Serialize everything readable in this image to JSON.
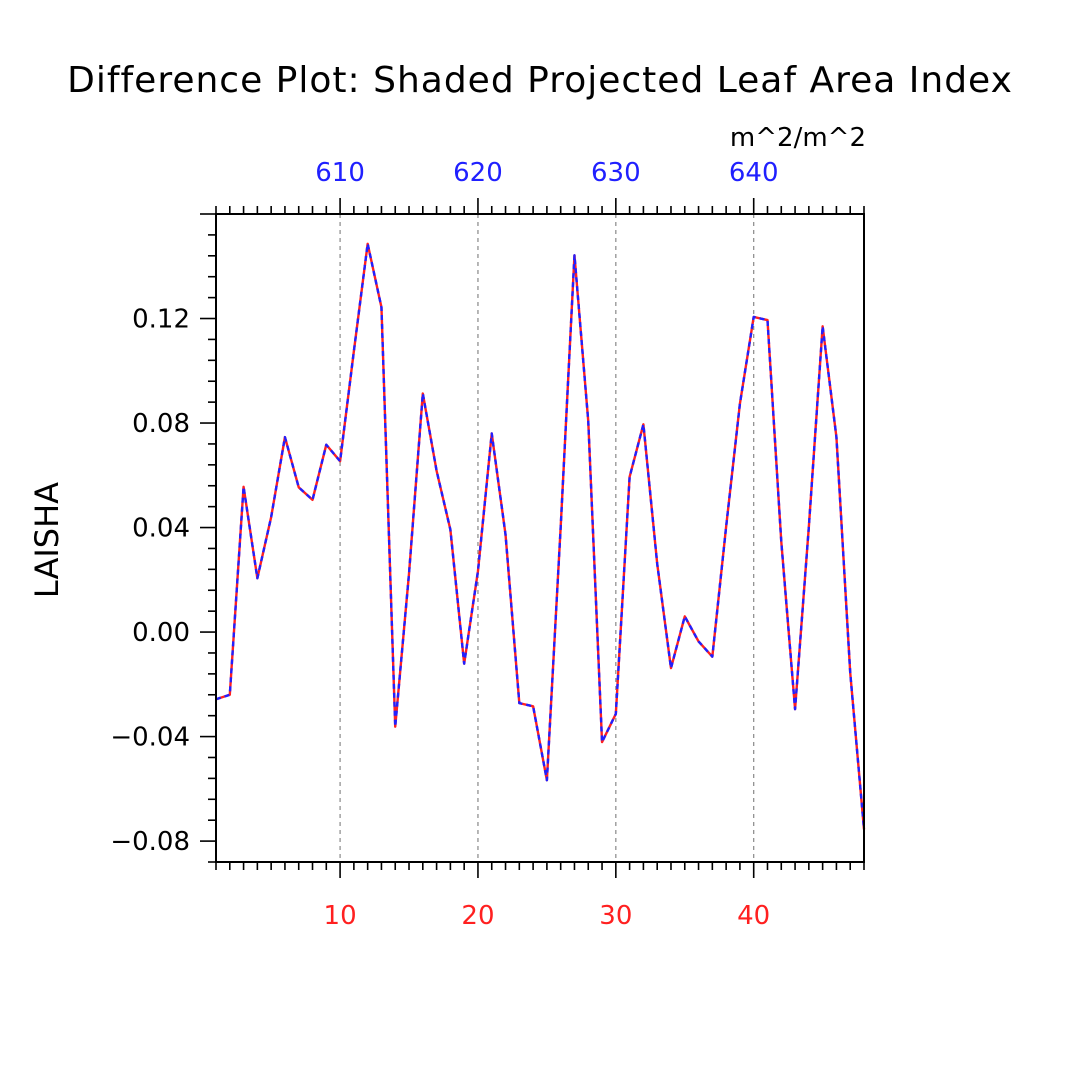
{
  "chart_data": {
    "type": "line",
    "title": "Difference Plot: Shaded Projected Leaf Area Index",
    "units": "m^2/m^2",
    "ylabel": "LAISHA",
    "xlim": [
      1,
      48
    ],
    "ylim": [
      -0.088,
      0.16
    ],
    "x_ticks_bottom": [
      {
        "value": 10,
        "label": "10"
      },
      {
        "value": 20,
        "label": "20"
      },
      {
        "value": 30,
        "label": "30"
      },
      {
        "value": 40,
        "label": "40"
      }
    ],
    "x_ticks_top": [
      {
        "value": 10,
        "label": "610"
      },
      {
        "value": 20,
        "label": "620"
      },
      {
        "value": 30,
        "label": "630"
      },
      {
        "value": 40,
        "label": "640"
      }
    ],
    "y_ticks": [
      {
        "value": -0.08,
        "label": "−0.08"
      },
      {
        "value": -0.04,
        "label": "−0.04"
      },
      {
        "value": 0.0,
        "label": "0.00"
      },
      {
        "value": 0.04,
        "label": "0.04"
      },
      {
        "value": 0.08,
        "label": "0.08"
      },
      {
        "value": 0.12,
        "label": "0.12"
      }
    ],
    "grid": "vertical dashed at major x ticks",
    "x": [
      1,
      2,
      3,
      4,
      5,
      6,
      7,
      8,
      9,
      10,
      11,
      12,
      13,
      14,
      15,
      16,
      17,
      18,
      19,
      20,
      21,
      22,
      23,
      24,
      25,
      26,
      27,
      28,
      29,
      30,
      31,
      32,
      33,
      34,
      35,
      36,
      37,
      38,
      39,
      40,
      41,
      42,
      43,
      44,
      45,
      46,
      47,
      48
    ],
    "series": [
      {
        "name": "difference",
        "color": "#ff2020",
        "overlay_color": "#2020ff",
        "style": "dashed overlay",
        "values": [
          -0.0257,
          -0.024,
          0.0556,
          0.0206,
          0.044,
          0.0746,
          0.0554,
          0.0506,
          0.0717,
          0.0654,
          0.1075,
          0.1486,
          0.1243,
          -0.0362,
          0.0224,
          0.0913,
          0.0617,
          0.0392,
          -0.0121,
          0.0233,
          0.076,
          0.0373,
          -0.0272,
          -0.0284,
          -0.0567,
          0.0402,
          0.1442,
          0.0807,
          -0.0421,
          -0.0313,
          0.0594,
          0.0795,
          0.0262,
          -0.0138,
          0.006,
          -0.0036,
          -0.0094,
          0.0403,
          0.0874,
          0.1206,
          0.1194,
          0.0346,
          -0.0295,
          0.0403,
          0.117,
          0.0746,
          -0.0155,
          -0.0755
        ]
      }
    ]
  }
}
